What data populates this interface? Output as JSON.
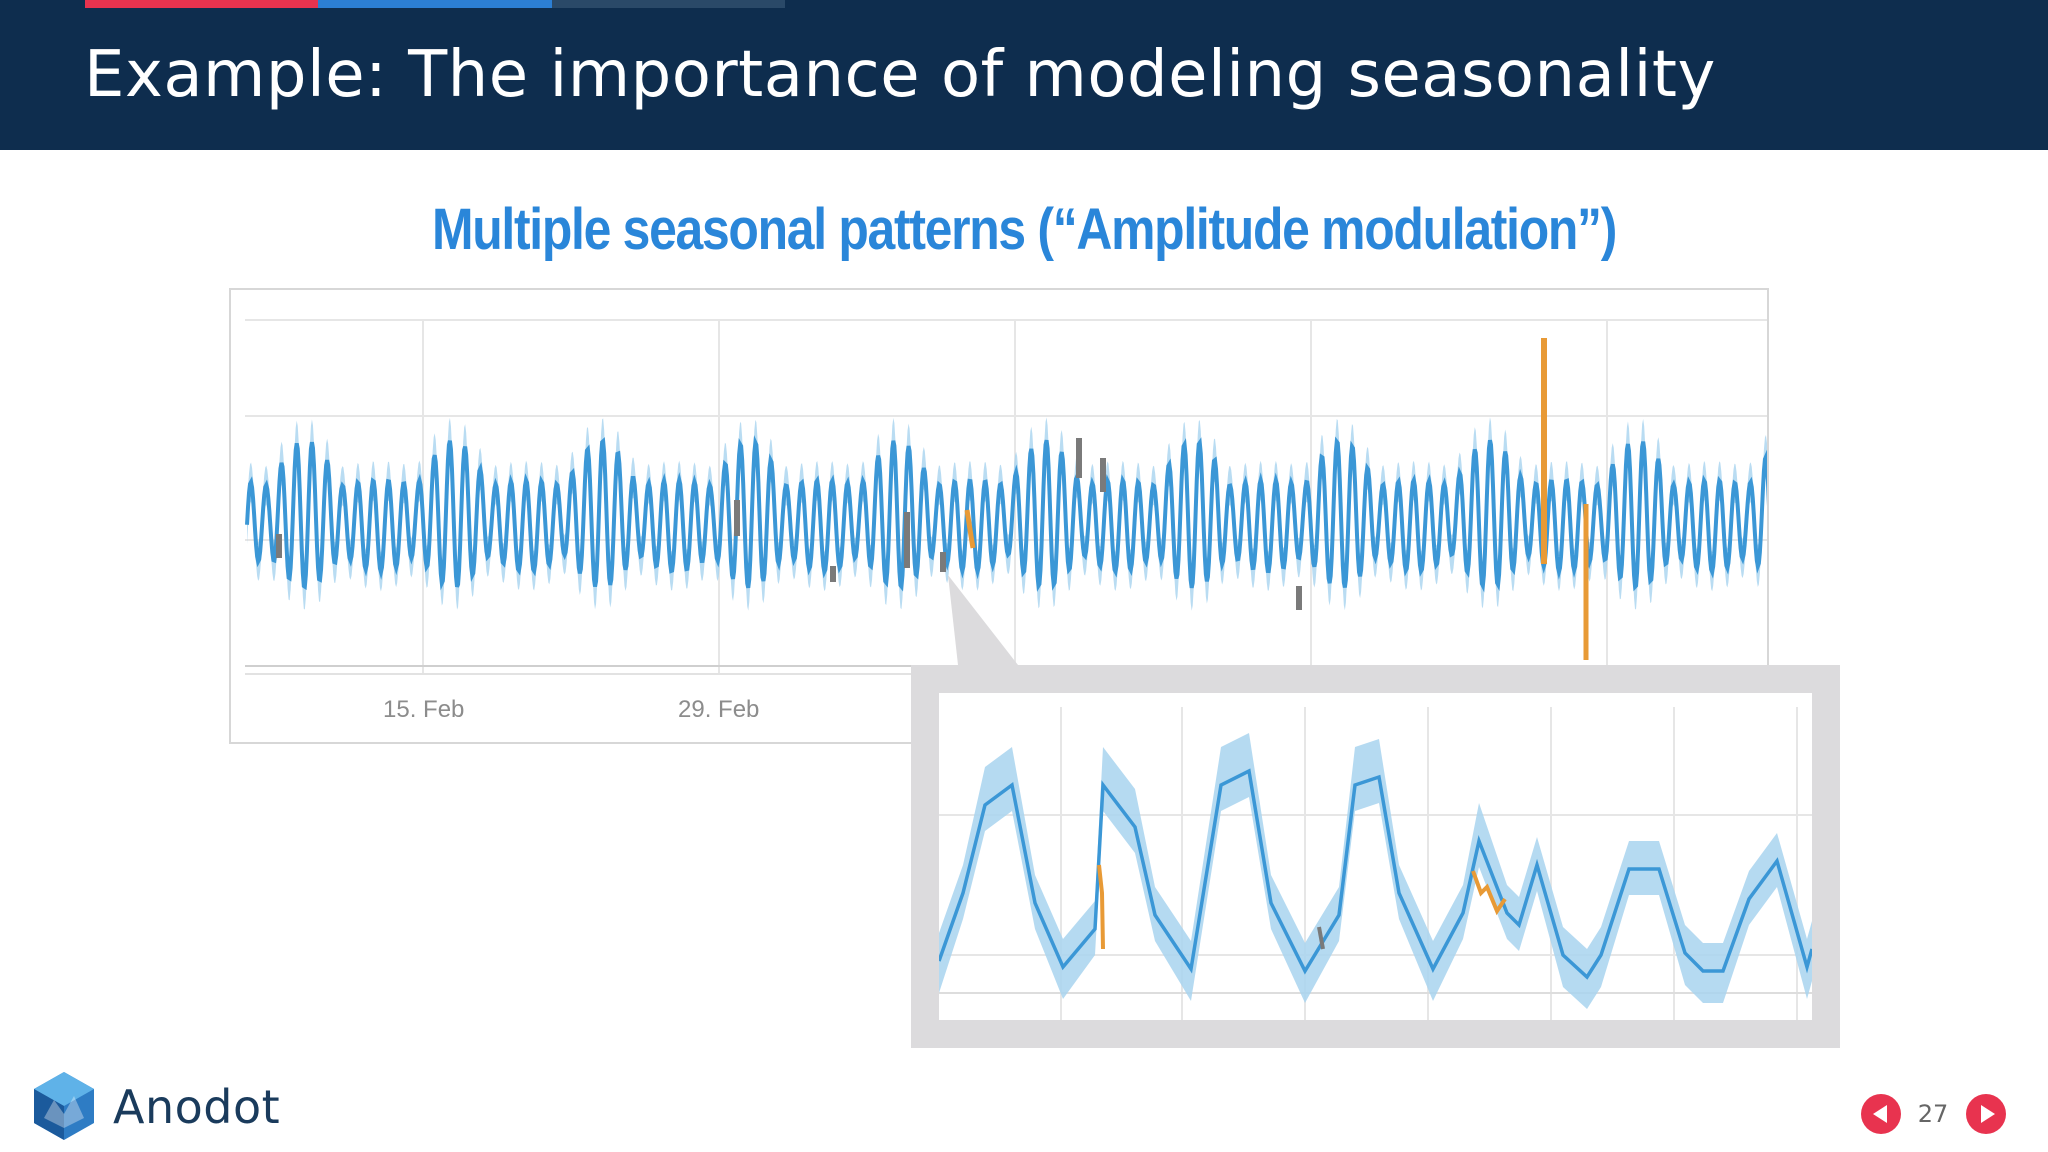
{
  "slide": {
    "title": "Example: The importance of modeling seasonality",
    "subtitle": "Multiple seasonal patterns (“Amplitude modulation”)",
    "page_number": "27"
  },
  "brand": {
    "name": "Anodot",
    "logo_icon": "anodot-hexagon-logo-icon"
  },
  "navigation": {
    "prev_icon": "triangle-left-icon",
    "next_icon": "triangle-right-icon"
  },
  "colors": {
    "header_bg": "#0e2d4e",
    "accent_red": "#e8334f",
    "accent_blue": "#2c7fd4",
    "series_line": "#3b97d6",
    "confidence_band": "#a8d3ef",
    "anomaly_orange": "#e89a36",
    "anomaly_gray": "#7a7a7a",
    "subtitle": "#2a86d9"
  },
  "chart_data": [
    {
      "type": "line",
      "name": "overview",
      "x_tick_labels": [
        "15. Feb",
        "29. Feb"
      ],
      "series_color": "#3b97d6",
      "band_color": "#a8d3ef",
      "grid": true,
      "anomalies": [
        "orange spike up near late period",
        "orange drop near late period",
        "gray dips scattered"
      ]
    },
    {
      "type": "line",
      "name": "zoom-detail",
      "x_tick_labels": [],
      "series_color": "#3b97d6",
      "band_color": "#a8d3ef",
      "grid": true
    }
  ]
}
